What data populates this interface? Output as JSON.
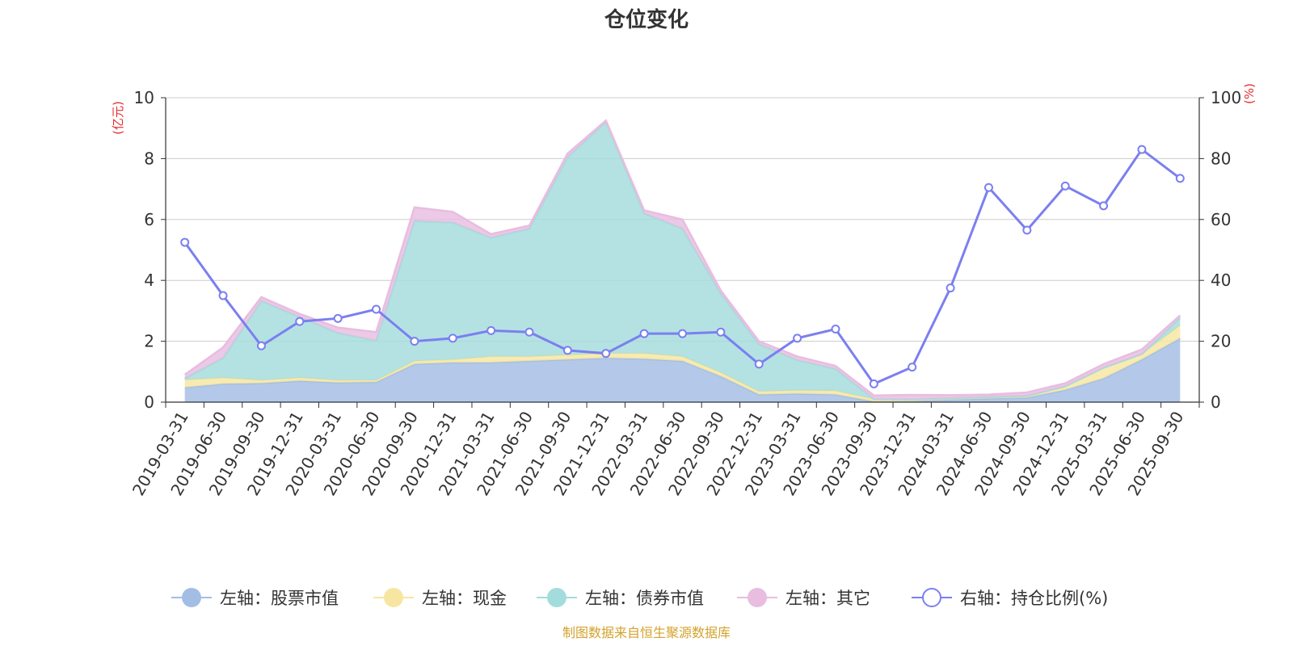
{
  "chart_data": {
    "type": "area",
    "title": "仓位变化",
    "left_axis_unit": "(亿元)",
    "right_axis_unit": "(%)",
    "ylim_left": [
      0,
      10
    ],
    "ylim_right": [
      0,
      100
    ],
    "left_ticks": [
      "0",
      "2",
      "4",
      "6",
      "8",
      "10"
    ],
    "right_ticks": [
      "0",
      "20",
      "40",
      "60",
      "80",
      "100"
    ],
    "categories": [
      "2019-03-31",
      "2019-06-30",
      "2019-09-30",
      "2019-12-31",
      "2020-03-31",
      "2020-06-30",
      "2020-09-30",
      "2020-12-31",
      "2021-03-31",
      "2021-06-30",
      "2021-09-30",
      "2021-12-31",
      "2022-03-31",
      "2022-06-30",
      "2022-09-30",
      "2022-12-31",
      "2023-03-31",
      "2023-06-30",
      "2023-09-30",
      "2023-12-31",
      "2024-03-31",
      "2024-06-30",
      "2024-09-30",
      "2024-12-31",
      "2025-03-31",
      "2025-06-30",
      "2025-09-30"
    ],
    "stack_series": [
      {
        "name": "左轴：股票市值",
        "color": "#a4bde4",
        "values": [
          0.48,
          0.6,
          0.62,
          0.7,
          0.64,
          0.66,
          1.25,
          1.3,
          1.3,
          1.35,
          1.4,
          1.45,
          1.42,
          1.35,
          0.85,
          0.25,
          0.28,
          0.25,
          0.02,
          0.03,
          0.08,
          0.12,
          0.15,
          0.4,
          0.78,
          1.4,
          2.1
        ]
      },
      {
        "name": "左轴：现金",
        "color": "#f7e6a1",
        "values": [
          0.25,
          0.2,
          0.1,
          0.1,
          0.08,
          0.06,
          0.1,
          0.1,
          0.2,
          0.15,
          0.15,
          0.15,
          0.18,
          0.15,
          0.12,
          0.1,
          0.1,
          0.12,
          0.08,
          0.06,
          0.05,
          0.05,
          0.06,
          0.12,
          0.35,
          0.18,
          0.42
        ]
      },
      {
        "name": "左轴：债券市值",
        "color": "#a3dcdc",
        "values": [
          0.05,
          0.65,
          2.6,
          2.0,
          1.55,
          1.3,
          4.6,
          4.5,
          3.9,
          4.2,
          6.5,
          7.6,
          4.6,
          4.2,
          2.6,
          1.55,
          1.0,
          0.72,
          0.0,
          0.0,
          0.0,
          0.0,
          0.0,
          0.0,
          0.0,
          0.0,
          0.25
        ]
      },
      {
        "name": "左轴：其它",
        "color": "#e8bde0",
        "values": [
          0.12,
          0.35,
          0.13,
          0.1,
          0.18,
          0.28,
          0.45,
          0.35,
          0.12,
          0.1,
          0.12,
          0.05,
          0.1,
          0.3,
          0.1,
          0.1,
          0.12,
          0.1,
          0.12,
          0.15,
          0.1,
          0.08,
          0.11,
          0.1,
          0.12,
          0.15,
          0.08
        ]
      }
    ],
    "line_series": {
      "name": "右轴：持仓比例(%)",
      "color": "#7b7ff0",
      "values": [
        52.5,
        35.0,
        18.5,
        26.5,
        27.5,
        30.5,
        20.0,
        21.0,
        23.5,
        23.0,
        17.0,
        16.0,
        22.5,
        22.5,
        23.0,
        12.5,
        21.0,
        24.0,
        6.0,
        11.5,
        37.5,
        70.5,
        56.5,
        71.0,
        64.5,
        83.0,
        73.5
      ]
    }
  },
  "legend": [
    {
      "label": "左轴：股票市值",
      "color": "#a4bde4",
      "icon": "filled-circle"
    },
    {
      "label": "左轴：现金",
      "color": "#f7e6a1",
      "icon": "filled-circle"
    },
    {
      "label": "左轴：债券市值",
      "color": "#a3dcdc",
      "icon": "filled-circle"
    },
    {
      "label": "左轴：其它",
      "color": "#e8bde0",
      "icon": "filled-circle"
    },
    {
      "label": "右轴：持仓比例(%)",
      "color": "#7b7ff0",
      "icon": "hollow-circle"
    }
  ],
  "source": "制图数据来自恒生聚源数据库",
  "colors": {
    "unit_red": "#e52d2d",
    "source_gold": "#d4a22c",
    "grid": "#cccccc",
    "axis": "#333333"
  }
}
